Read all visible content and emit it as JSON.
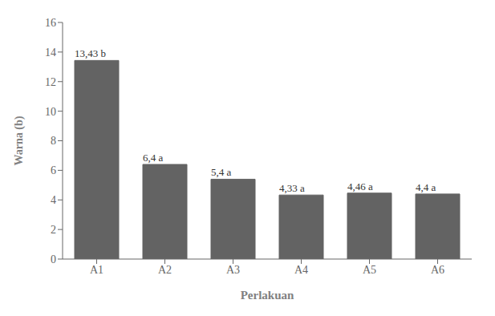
{
  "chart_data": {
    "type": "bar",
    "xlabel": "Perlakuan",
    "ylabel": "Warna (b)",
    "categories": [
      "A1",
      "A2",
      "A3",
      "A4",
      "A5",
      "A6"
    ],
    "values": [
      13.43,
      6.4,
      5.4,
      4.33,
      4.46,
      4.4
    ],
    "value_labels": [
      "13,43 b",
      "6,4 a",
      "5,4 a",
      "4,33 a",
      "4,46 a",
      "4,4 a"
    ],
    "data_labels": true,
    "color": "#636363",
    "ylim": [
      0,
      16
    ],
    "yticks": [
      0,
      2,
      4,
      6,
      8,
      10,
      12,
      14,
      16
    ],
    "grid": false
  }
}
